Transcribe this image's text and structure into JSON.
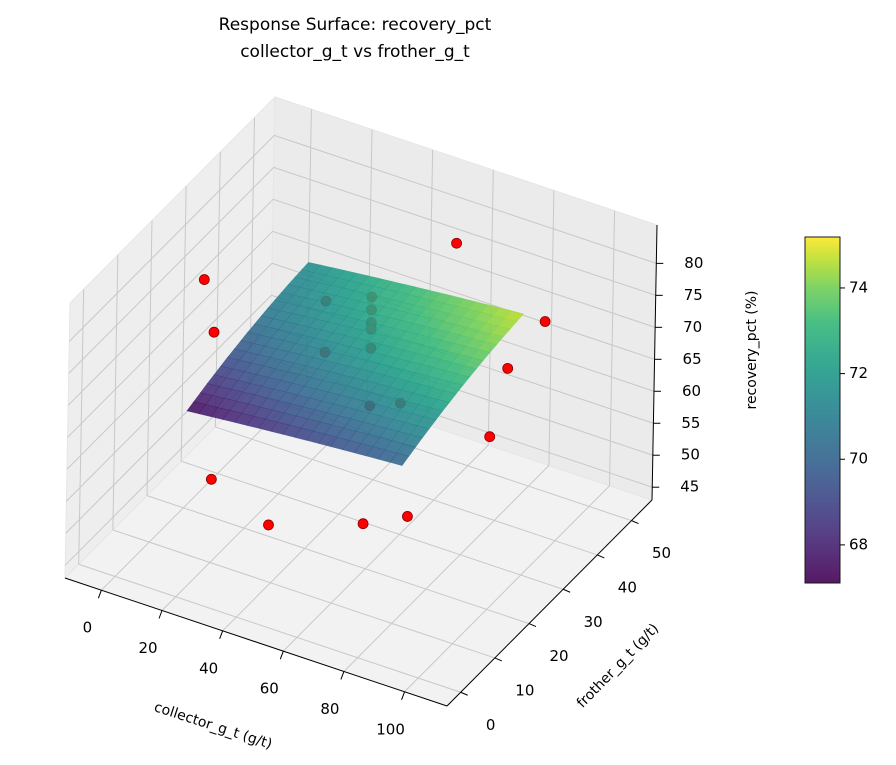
{
  "chart_data": {
    "type": "surface3d",
    "title": [
      "Response Surface: recovery_pct",
      "collector_g_t vs frother_g_t"
    ],
    "xlabel": "collector_g_t (g/t)",
    "ylabel": "frother_g_t (g/t)",
    "zlabel": "recovery_pct (%)",
    "xlim": [
      -12,
      114
    ],
    "ylim": [
      -4,
      56
    ],
    "zlim": [
      43,
      86
    ],
    "xticks": [
      0,
      20,
      40,
      60,
      80,
      100
    ],
    "yticks": [
      0,
      10,
      20,
      30,
      40,
      50
    ],
    "zticks": [
      45,
      50,
      55,
      60,
      65,
      70,
      75,
      80
    ],
    "grid": true,
    "surface": {
      "colormap": "viridis",
      "x": [
        14.6,
        26.4,
        38.2,
        50,
        61.8,
        73.6,
        85.4
      ],
      "y": [
        7.3,
        13.2,
        19.1,
        25,
        30.9,
        36.8,
        42.7
      ],
      "z": [
        [
          67.3,
          67.83,
          68.33,
          68.8,
          69.23,
          69.63,
          70.0
        ],
        [
          68.39,
          68.94,
          69.45,
          69.93,
          70.38,
          70.79,
          71.17
        ],
        [
          69.32,
          69.88,
          70.41,
          70.91,
          71.37,
          71.79,
          72.19
        ],
        [
          70.1,
          70.68,
          71.22,
          71.73,
          72.2,
          72.64,
          73.05
        ],
        [
          70.72,
          71.31,
          71.87,
          72.39,
          72.88,
          73.33,
          73.76
        ],
        [
          71.19,
          71.79,
          72.36,
          72.9,
          73.4,
          73.87,
          74.31
        ],
        [
          71.5,
          72.12,
          72.7,
          73.25,
          73.77,
          74.25,
          74.7
        ]
      ],
      "clim": [
        67.11,
        75.19
      ],
      "cticks": [
        68,
        70,
        72,
        74
      ]
    },
    "scatter": {
      "color": "#ff0000",
      "x": [
        0,
        20,
        20,
        50,
        70,
        90,
        55,
        90,
        100,
        100,
        55,
        55,
        55,
        55,
        55,
        55,
        40,
        40,
        65
      ],
      "y": [
        25,
        10,
        10,
        0,
        10,
        5,
        50,
        45,
        25,
        20,
        25,
        25,
        25,
        25,
        25,
        25,
        25,
        25,
        25
      ],
      "z": [
        76,
        79,
        56,
        59,
        57,
        64,
        77,
        73,
        78,
        70,
        82,
        80,
        78,
        77,
        74,
        65,
        79,
        71,
        67
      ]
    }
  }
}
